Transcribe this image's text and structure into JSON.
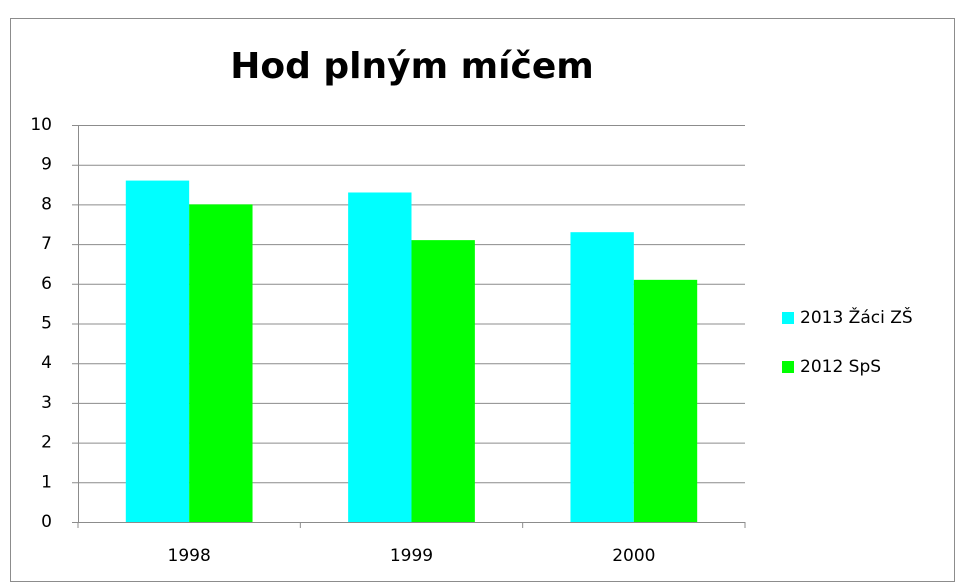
{
  "chart_data": {
    "type": "bar",
    "title": "Hod plným míčem",
    "categories": [
      "1998",
      "1999",
      "2000"
    ],
    "series": [
      {
        "name": "2013 Žáci ZŠ",
        "color": "#00ffff",
        "values": [
          8.6,
          8.3,
          7.3
        ]
      },
      {
        "name": "2012 SpS",
        "color": "#00ff00",
        "values": [
          8.0,
          7.1,
          6.1
        ]
      }
    ],
    "ylim": [
      0,
      10
    ],
    "yticks": [
      0,
      1,
      2,
      3,
      4,
      5,
      6,
      7,
      8,
      9,
      10
    ],
    "grid": true,
    "legend": "right"
  }
}
